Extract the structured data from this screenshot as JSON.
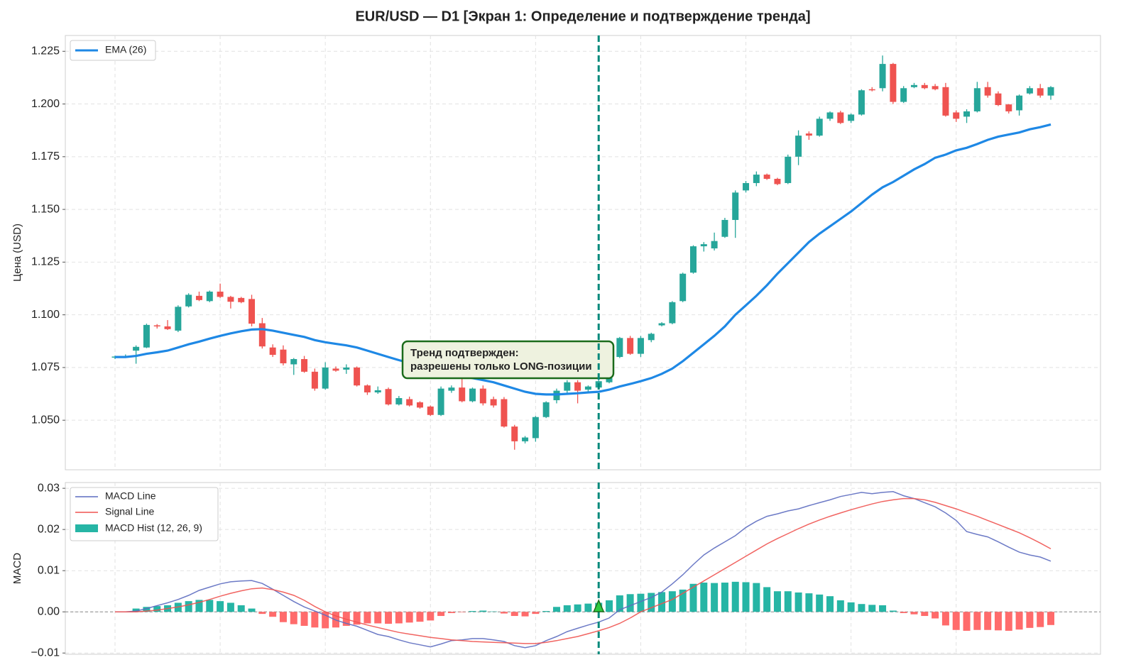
{
  "chart_data": [
    {
      "type": "candlestick",
      "title": "EUR/USD — D1 [Экран 1: Определение и подтверждение тренда]",
      "ylabel": "Цена (USD)",
      "open": [
        1.0798,
        1.08,
        1.083,
        1.0845,
        1.095,
        1.0945,
        1.0925,
        1.104,
        1.109,
        1.1065,
        1.111,
        1.1085,
        1.108,
        1.1075,
        1.096,
        1.0845,
        1.0835,
        1.0765,
        1.079,
        1.073,
        1.065,
        1.0745,
        1.074,
        1.075,
        1.0665,
        1.0632,
        1.0648,
        1.0575,
        1.06,
        1.0585,
        1.0565,
        1.0525,
        1.064,
        1.0655,
        1.059,
        1.065,
        1.06,
        1.06,
        1.047,
        1.04,
        1.0415,
        1.0515,
        1.0595,
        1.064,
        1.068,
        1.0645,
        1.0655,
        1.068,
        1.08,
        1.089,
        1.0815,
        1.088,
        1.095,
        1.096,
        1.1065,
        1.12,
        1.1325,
        1.1315,
        1.137,
        1.145,
        1.159,
        1.1625,
        1.1665,
        1.1645,
        1.1625,
        1.175,
        1.186,
        1.185,
        1.193,
        1.196,
        1.192,
        1.195,
        1.207,
        1.2075,
        1.219,
        1.201,
        1.208,
        1.209,
        1.2085,
        1.208,
        1.196,
        1.194,
        1.1965,
        1.208,
        1.205,
        1.1998,
        1.197,
        1.205,
        1.2075,
        1.204
      ],
      "high": [
        1.0806,
        1.0812,
        1.0855,
        1.0958,
        1.0956,
        1.0975,
        1.1045,
        1.1102,
        1.111,
        1.1115,
        1.1148,
        1.109,
        1.1085,
        1.1095,
        1.0985,
        1.086,
        1.0855,
        1.0795,
        1.0805,
        1.0745,
        1.0775,
        1.0755,
        1.0765,
        1.0755,
        1.067,
        1.066,
        1.0655,
        1.0615,
        1.0612,
        1.059,
        1.057,
        1.066,
        1.0665,
        1.0705,
        1.0655,
        1.0665,
        1.0612,
        1.061,
        1.0478,
        1.0425,
        1.052,
        1.059,
        1.065,
        1.069,
        1.069,
        1.0665,
        1.07,
        1.0725,
        1.0895,
        1.09,
        1.09,
        1.0915,
        1.0965,
        1.1065,
        1.12,
        1.133,
        1.1345,
        1.139,
        1.146,
        1.159,
        1.1635,
        1.168,
        1.167,
        1.165,
        1.176,
        1.1875,
        1.187,
        1.194,
        1.1965,
        1.1968,
        1.1955,
        1.207,
        1.208,
        1.223,
        1.2195,
        1.2085,
        1.21,
        1.21,
        1.2095,
        1.21,
        1.197,
        1.1975,
        1.2105,
        1.2105,
        1.206,
        1.2,
        1.2045,
        1.2085,
        1.2095,
        1.2085
      ],
      "low": [
        1.079,
        1.0795,
        1.0768,
        1.0842,
        1.0935,
        1.0928,
        1.0918,
        1.1035,
        1.1065,
        1.106,
        1.108,
        1.103,
        1.1055,
        1.0945,
        1.084,
        1.08,
        1.076,
        1.0715,
        1.0725,
        1.064,
        1.0645,
        1.073,
        1.072,
        1.066,
        1.062,
        1.0625,
        1.057,
        1.057,
        1.0565,
        1.0555,
        1.052,
        1.052,
        1.063,
        1.0585,
        1.0585,
        1.057,
        1.056,
        1.0465,
        1.036,
        1.039,
        1.0398,
        1.051,
        1.058,
        1.063,
        1.058,
        1.0635,
        1.065,
        1.0675,
        1.0795,
        1.081,
        1.08,
        1.087,
        1.0945,
        1.0955,
        1.106,
        1.1195,
        1.13,
        1.1305,
        1.1365,
        1.1365,
        1.158,
        1.161,
        1.164,
        1.1615,
        1.162,
        1.171,
        1.183,
        1.1845,
        1.192,
        1.1905,
        1.191,
        1.1945,
        1.206,
        1.206,
        1.2,
        1.2005,
        1.2075,
        1.207,
        1.2065,
        1.194,
        1.1915,
        1.191,
        1.196,
        1.203,
        1.199,
        1.1955,
        1.1945,
        1.2045,
        1.203,
        1.202
      ],
      "close": [
        1.0802,
        1.0803,
        1.0848,
        1.0952,
        1.0948,
        1.0932,
        1.1038,
        1.1095,
        1.107,
        1.111,
        1.1085,
        1.1062,
        1.106,
        1.0958,
        1.085,
        1.081,
        1.077,
        1.079,
        1.073,
        1.065,
        1.075,
        1.0735,
        1.075,
        1.0665,
        1.0632,
        1.0642,
        1.0575,
        1.0605,
        1.057,
        1.056,
        1.0525,
        1.065,
        1.0655,
        1.059,
        1.065,
        1.058,
        1.057,
        1.047,
        1.04,
        1.0418,
        1.0515,
        1.0585,
        1.064,
        1.068,
        1.064,
        1.066,
        1.0685,
        1.07,
        1.089,
        1.0815,
        1.089,
        1.091,
        1.096,
        1.106,
        1.1195,
        1.1325,
        1.1335,
        1.135,
        1.145,
        1.158,
        1.1625,
        1.1665,
        1.1645,
        1.162,
        1.175,
        1.185,
        1.185,
        1.193,
        1.196,
        1.191,
        1.195,
        1.2065,
        1.2065,
        1.219,
        1.201,
        1.2075,
        1.209,
        1.2075,
        1.207,
        1.1945,
        1.193,
        1.1965,
        1.2075,
        1.204,
        1.1995,
        1.1965,
        1.204,
        1.2075,
        1.204,
        1.208
      ],
      "up_color": "#26a69a",
      "down_color": "#ef5350",
      "series": [
        {
          "name": "EMA (26)",
          "color": "#1e88e5",
          "values": [
            1.08,
            1.08,
            1.0805,
            1.0815,
            1.0822,
            1.083,
            1.0845,
            1.086,
            1.0873,
            1.0887,
            1.09,
            1.0912,
            1.0922,
            1.093,
            1.0932,
            1.0925,
            1.0915,
            1.0905,
            1.0895,
            1.088,
            1.087,
            1.0862,
            1.0855,
            1.0845,
            1.083,
            1.0815,
            1.08,
            1.0785,
            1.0772,
            1.0755,
            1.074,
            1.073,
            1.072,
            1.071,
            1.07,
            1.069,
            1.068,
            1.0665,
            1.065,
            1.0635,
            1.0625,
            1.0622,
            1.0622,
            1.0625,
            1.0628,
            1.0632,
            1.0635,
            1.0645,
            1.066,
            1.0672,
            1.0685,
            1.07,
            1.072,
            1.0745,
            1.078,
            1.082,
            1.086,
            1.09,
            1.0945,
            1.1,
            1.1045,
            1.109,
            1.114,
            1.1195,
            1.1245,
            1.1295,
            1.1345,
            1.1385,
            1.142,
            1.1455,
            1.149,
            1.153,
            1.157,
            1.1605,
            1.163,
            1.166,
            1.169,
            1.1715,
            1.1745,
            1.176,
            1.178,
            1.1792,
            1.181,
            1.183,
            1.1845,
            1.1855,
            1.1865,
            1.188,
            1.189,
            1.1903
          ]
        }
      ],
      "ylim": [
        1.0265,
        1.2325
      ],
      "yticks": [
        {
          "value": 1.05,
          "label": "1.050"
        },
        1.075,
        {
          "value": 1.1,
          "label": "1.100"
        },
        1.125,
        {
          "value": 1.15,
          "label": "1.150"
        },
        1.175,
        {
          "value": 1.2,
          "label": "1.200"
        },
        1.225
      ],
      "grid": true,
      "legend": "upper left",
      "marker_index": 46,
      "annotation": [
        "Тренд подтвержден:",
        "разрешены только LONG-позиции"
      ]
    },
    {
      "type": "macd",
      "ylabel": "MACD",
      "series": [
        {
          "name": "MACD Line",
          "color": "#5c6bc0",
          "values": [
            0,
            0,
            0.0002,
            0.0008,
            0.0015,
            0.0022,
            0.003,
            0.004,
            0.0052,
            0.006,
            0.0068,
            0.0073,
            0.0075,
            0.0076,
            0.0069,
            0.0055,
            0.004,
            0.0025,
            0.0012,
            0.0002,
            -0.0008,
            -0.002,
            -0.0028,
            -0.0035,
            -0.0045,
            -0.0055,
            -0.006,
            -0.0068,
            -0.0075,
            -0.008,
            -0.0085,
            -0.0078,
            -0.007,
            -0.0068,
            -0.0065,
            -0.0065,
            -0.0068,
            -0.0072,
            -0.0082,
            -0.0087,
            -0.0082,
            -0.007,
            -0.006,
            -0.0048,
            -0.004,
            -0.0032,
            -0.0025,
            -0.0015,
            0.0005,
            0.0015,
            0.0025,
            0.0035,
            0.0048,
            0.0068,
            0.009,
            0.0115,
            0.0138,
            0.0155,
            0.017,
            0.0185,
            0.0205,
            0.022,
            0.0232,
            0.0238,
            0.0245,
            0.025,
            0.0258,
            0.0265,
            0.0272,
            0.028,
            0.0285,
            0.029,
            0.0287,
            0.029,
            0.0292,
            0.0282,
            0.0275,
            0.0265,
            0.0255,
            0.024,
            0.0222,
            0.0195,
            0.0188,
            0.0182,
            0.017,
            0.0157,
            0.0145,
            0.0138,
            0.0133,
            0.0123
          ]
        },
        {
          "name": "Signal Line",
          "color": "#ef5350",
          "values": [
            0,
            0,
            0,
            0.0002,
            0.0004,
            0.0008,
            0.0012,
            0.0017,
            0.0023,
            0.003,
            0.0038,
            0.0045,
            0.0051,
            0.0056,
            0.0058,
            0.0054,
            0.0048,
            0.004,
            0.0028,
            0.0013,
            0,
            -0.001,
            -0.0018,
            -0.0025,
            -0.0032,
            -0.0038,
            -0.0044,
            -0.005,
            -0.0054,
            -0.0058,
            -0.0062,
            -0.0065,
            -0.0068,
            -0.007,
            -0.0072,
            -0.0073,
            -0.0074,
            -0.0075,
            -0.0076,
            -0.0077,
            -0.0077,
            -0.0074,
            -0.007,
            -0.0065,
            -0.006,
            -0.0053,
            -0.0046,
            -0.0038,
            -0.0028,
            -0.0015,
            0,
            0.001,
            0.002,
            0.003,
            0.0045,
            0.006,
            0.0075,
            0.009,
            0.0105,
            0.012,
            0.0135,
            0.015,
            0.0165,
            0.0178,
            0.019,
            0.0202,
            0.0213,
            0.0223,
            0.0232,
            0.024,
            0.0248,
            0.0255,
            0.0262,
            0.0268,
            0.0272,
            0.0275,
            0.0275,
            0.0272,
            0.0266,
            0.0258,
            0.025,
            0.0241,
            0.0232,
            0.0222,
            0.0212,
            0.0202,
            0.0192,
            0.018,
            0.0167,
            0.0153
          ]
        }
      ],
      "histogram": {
        "name": "MACD Hist (12, 26, 9)",
        "pos_color": "#26b5a5",
        "neg_color": "#ff6b6b",
        "values": [
          0,
          0.0001,
          0.0008,
          0.0012,
          0.0014,
          0.0016,
          0.0022,
          0.0026,
          0.0029,
          0.0029,
          0.0026,
          0.0022,
          0.0016,
          0.0008,
          -0.0005,
          -0.0012,
          -0.0025,
          -0.003,
          -0.0034,
          -0.0038,
          -0.004,
          -0.0038,
          -0.0034,
          -0.0031,
          -0.0028,
          -0.0028,
          -0.0029,
          -0.0028,
          -0.0026,
          -0.0024,
          -0.0021,
          -0.001,
          -0.0003,
          -0.0001,
          0.0002,
          0.0003,
          0.0001,
          -0.0004,
          -0.001,
          -0.0011,
          -0.0005,
          0.0002,
          0.0012,
          0.0016,
          0.0018,
          0.002,
          0.0022,
          0.0028,
          0.004,
          0.0043,
          0.0044,
          0.0046,
          0.0048,
          0.005,
          0.0054,
          0.0068,
          0.0071,
          0.007,
          0.0071,
          0.0073,
          0.0072,
          0.007,
          0.006,
          0.005,
          0.005,
          0.0047,
          0.0045,
          0.0042,
          0.0038,
          0.0028,
          0.0023,
          0.0019,
          0.0017,
          0.0016,
          0.0003,
          -0.0003,
          -0.0006,
          -0.001,
          -0.0016,
          -0.0033,
          -0.0044,
          -0.0046,
          -0.0044,
          -0.0044,
          -0.0045,
          -0.0046,
          -0.0043,
          -0.0039,
          -0.0037,
          -0.0032
        ]
      },
      "ylim": [
        -0.0103,
        0.0314
      ],
      "yticks": [
        {
          "value": -0.01,
          "label": "−0.01"
        },
        {
          "value": 0,
          "label": "0.00"
        },
        0.01,
        0.02,
        0.03
      ],
      "grid": true,
      "legend": "upper left"
    }
  ]
}
